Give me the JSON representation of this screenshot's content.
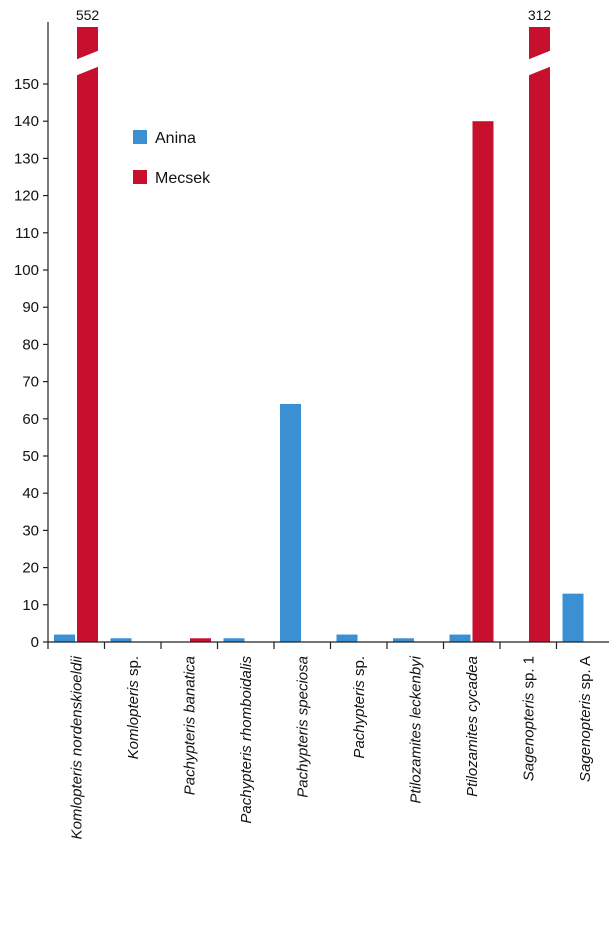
{
  "chart_data": {
    "type": "bar",
    "categories": [
      {
        "italic": "Komlopteris nordenskioeldii",
        "roman": ""
      },
      {
        "italic": "Komlopteris",
        "roman": " sp."
      },
      {
        "italic": "Pachypteris banatica",
        "roman": ""
      },
      {
        "italic": "Pachypteris rhomboidalis",
        "roman": ""
      },
      {
        "italic": "Pachypteris speciosa",
        "roman": ""
      },
      {
        "italic": "Pachypteris",
        "roman": " sp."
      },
      {
        "italic": "Ptilozamites leckenbyi",
        "roman": ""
      },
      {
        "italic": "Ptilozamites cycadea",
        "roman": ""
      },
      {
        "italic": "Sagenopteris",
        "roman": " sp. 1"
      },
      {
        "italic": "Sagenopteris",
        "roman": " sp. A"
      }
    ],
    "series": [
      {
        "name": "Anina",
        "color": "#3b8fd3",
        "values": [
          2,
          1,
          0,
          1,
          64,
          2,
          1,
          2,
          0,
          13
        ]
      },
      {
        "name": "Mecsek",
        "color": "#c8102e",
        "values": [
          552,
          0,
          1,
          0,
          0,
          0,
          0,
          140,
          312,
          0
        ]
      }
    ],
    "broken_bar_labels": [
      "552",
      "312"
    ],
    "y_ticks": [
      "0",
      "10",
      "20",
      "30",
      "40",
      "50",
      "60",
      "70",
      "80",
      "90",
      "100",
      "110",
      "120",
      "130",
      "140",
      "150"
    ],
    "ylim": [
      0,
      150
    ],
    "axis_break": true,
    "legend_position": "upper-left inside plot",
    "grid": false
  }
}
